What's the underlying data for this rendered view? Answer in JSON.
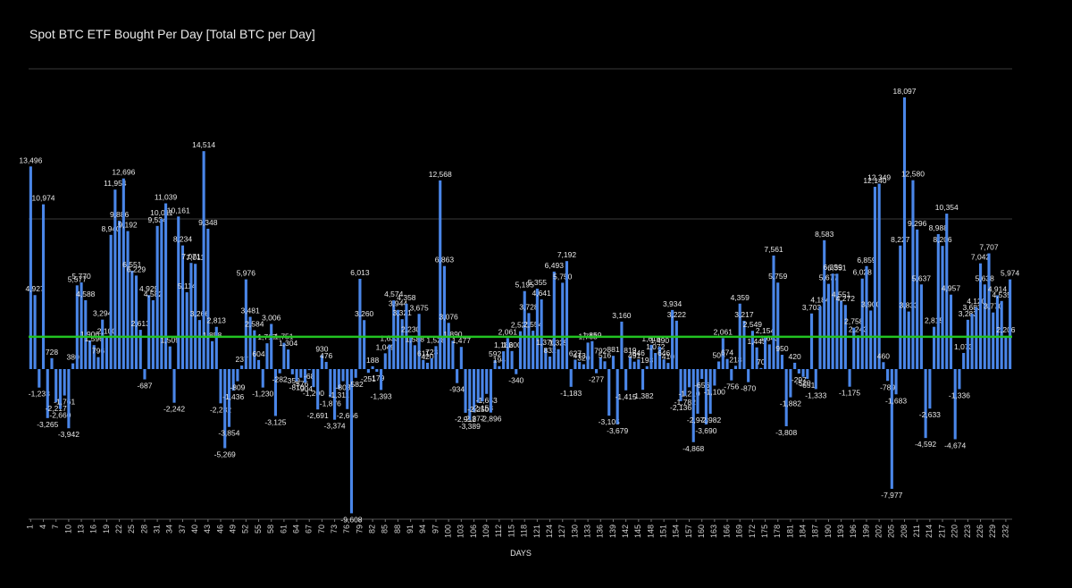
{
  "chart_data": {
    "type": "bar",
    "title": "Spot BTC ETF Bought Per Day [Total BTC per Day]",
    "x_label": "DAYS",
    "color": "#4a86e8",
    "ylim": [
      -10000,
      20000
    ],
    "ygrid": [
      10000,
      20000
    ],
    "average_line": 2150,
    "average_color": "#22c322",
    "x": [
      1,
      2,
      3,
      4,
      5,
      6,
      7,
      8,
      9,
      10,
      11,
      12,
      13,
      14,
      15,
      16,
      17,
      18,
      19,
      20,
      21,
      22,
      23,
      24,
      25,
      26,
      27,
      28,
      29,
      30,
      31,
      32,
      33,
      34,
      35,
      36,
      37,
      38,
      39,
      40,
      41,
      42,
      43,
      44,
      45,
      46,
      47,
      48,
      49,
      50,
      51,
      52,
      53,
      54,
      55,
      56,
      57,
      58,
      59,
      60,
      61,
      62,
      63,
      64,
      65,
      66,
      67,
      68,
      69,
      70,
      71,
      72,
      73,
      74,
      75,
      76,
      77,
      78,
      79,
      80,
      81,
      82,
      83,
      84,
      85,
      86,
      87,
      88,
      89,
      90,
      91,
      92,
      93,
      94,
      95,
      96,
      97,
      98,
      99,
      100,
      101,
      102,
      103,
      104,
      105,
      106,
      107,
      108,
      109,
      110,
      111,
      112,
      113,
      114,
      115,
      116,
      117,
      118,
      119,
      120,
      121,
      122,
      123,
      124,
      125,
      126,
      127,
      128,
      129,
      130,
      131,
      132,
      133,
      134,
      135,
      136,
      137,
      138,
      139,
      140,
      141,
      142,
      143,
      144,
      145,
      146,
      147,
      148,
      149,
      150,
      151,
      152,
      153,
      154,
      155,
      156,
      157,
      158,
      159,
      160,
      161,
      162,
      163,
      164,
      165,
      166,
      167,
      168,
      169,
      170,
      171,
      172,
      173,
      174,
      175,
      176,
      177,
      178,
      179,
      180,
      181,
      182,
      183,
      184,
      185,
      186,
      187,
      188,
      189,
      190,
      191,
      192,
      193,
      194,
      195,
      196,
      197,
      198,
      199,
      200,
      201,
      202,
      203,
      204,
      205,
      206,
      207,
      208,
      209,
      210,
      211,
      212,
      213,
      214,
      215,
      216,
      217,
      218,
      219,
      220,
      221,
      222,
      223,
      224,
      225,
      226,
      227,
      228,
      229,
      230,
      231,
      232,
      233
    ],
    "xticks": [
      1,
      4,
      7,
      10,
      13,
      16,
      19,
      22,
      25,
      28,
      31,
      34,
      37,
      40,
      43,
      46,
      49,
      52,
      55,
      58,
      61,
      64,
      67,
      70,
      73,
      76,
      79,
      82,
      85,
      88,
      91,
      94,
      97,
      100,
      103,
      106,
      109,
      112,
      115,
      118,
      121,
      124,
      127,
      130,
      133,
      136,
      139,
      142,
      145,
      148,
      151,
      154,
      157,
      160,
      163,
      166,
      169,
      172,
      175,
      178,
      181,
      184,
      187,
      190,
      193,
      196,
      199,
      202,
      205,
      208,
      211,
      214,
      217,
      220,
      223,
      226,
      229,
      232
    ],
    "values": [
      13496,
      4927,
      -1233,
      10974,
      -3265,
      728,
      -2217,
      -2660,
      -1761,
      -3942,
      380,
      5577,
      5770,
      4588,
      1906,
      1596,
      796,
      3294,
      2100,
      8940,
      11954,
      9886,
      12696,
      9192,
      6551,
      6229,
      2613,
      -687,
      4929,
      4582,
      9534,
      10011,
      11039,
      1509,
      -2242,
      10161,
      8234,
      5114,
      7071,
      7011,
      3266,
      14514,
      9348,
      1858,
      2813,
      -2282,
      -5269,
      -3854,
      -1436,
      -809,
      237,
      5976,
      3481,
      2584,
      604,
      -1230,
      1717,
      3006,
      -3125,
      -282,
      1751,
      1304,
      -350,
      -810,
      -576,
      -904,
      -68,
      -1200,
      -2691,
      930,
      476,
      -1876,
      -3374,
      -1311,
      -808,
      -2666,
      -9608,
      -582,
      6013,
      3260,
      -251,
      188,
      -179,
      -1393,
      1049,
      1633,
      4574,
      3944,
      3321,
      4358,
      2230,
      1588,
      3675,
      611,
      420,
      723,
      1528,
      12568,
      6863,
      3076,
      1890,
      -934,
      1477,
      -2912,
      -3389,
      -2877,
      -2250,
      -2158,
      -1653,
      -2896,
      592,
      194,
      1186,
      2061,
      1200,
      -340,
      2521,
      5195,
      3728,
      2554,
      5355,
      4641,
      1376,
      832,
      6493,
      1325,
      5750,
      7192,
      -1183,
      627,
      473,
      320,
      1763,
      1859,
      -277,
      792,
      516,
      -3105,
      881,
      -3679,
      3160,
      -1415,
      819,
      491,
      646,
      -1382,
      193,
      1616,
      1072,
      1490,
      646,
      410,
      3934,
      3222,
      -2136,
      -1782,
      -1210,
      -4868,
      -2973,
      -656,
      -3690,
      -2982,
      -1100,
      506,
      2061,
      674,
      -756,
      218,
      4359,
      3217,
      -870,
      2549,
      1443,
      70,
      2154,
      1643,
      7561,
      5759,
      950,
      -3808,
      -1882,
      420,
      -297,
      -520,
      -651,
      3703,
      -1333,
      4184,
      8583,
      5677,
      6359,
      6351,
      4551,
      4272,
      -1175,
      2758,
      2243,
      6028,
      6859,
      3900,
      12140,
      12349,
      460,
      -789,
      -7977,
      -1683,
      8227,
      18097,
      3833,
      12580,
      9296,
      5637,
      -4592,
      -2633,
      2815,
      8988,
      8206,
      10354,
      4957,
      -4674,
      -1336,
      1073,
      3283,
      3683,
      4120,
      7042,
      5638,
      7707,
      3770,
      4914,
      4535,
      2206,
      5974
    ],
    "value_labels": [
      "13,496",
      "4,927",
      "-1,233",
      "10,974",
      "-3,265",
      "728",
      "-2,217",
      "-2,660",
      "-1,761",
      "-3,942",
      "380",
      "5,577",
      "5,770",
      "4,588",
      "1,906",
      "1,596",
      "796",
      "3,294",
      "2,100",
      "8,940",
      "11,954",
      "9,886",
      "12,696",
      "9,192",
      "6,551",
      "6,229",
      "2,613",
      "-687",
      "4,929",
      "4,582",
      "9,534",
      "10,011",
      "11,039",
      "1,509",
      "-2,242",
      "10,161",
      "8,234",
      "5,114",
      "7,071",
      "7,011",
      "3,266",
      "14,514",
      "9,348",
      "1,858",
      "2,813",
      "-2,282",
      "-5,269",
      "-3,854",
      "-1,436",
      "-809",
      "237",
      "5,976",
      "3,481",
      "2,584",
      "604",
      "-1,230",
      "1,717",
      "3,006",
      "-3,125",
      "-282",
      "1,751",
      "1,304",
      "-350",
      "-810",
      "-576",
      "-904",
      "-68",
      "-1,200",
      "-2,691",
      "930",
      "476",
      "-1,876",
      "-3,374",
      "-1,311",
      "-808",
      "-2,666",
      "-9,608",
      "-582",
      "6,013",
      "3,260",
      "-251",
      "188",
      "-179",
      "-1,393",
      "1,049",
      "1,633",
      "4,574",
      "3,944",
      "3,321",
      "4,358",
      "2,230",
      "1,588",
      "3,675",
      "611",
      "420",
      "723",
      "1,528",
      "12,568",
      "6,863",
      "3,076",
      "1,890",
      "-934",
      "1,477",
      "-2,912",
      "-3,389",
      "-2,877",
      "-2,250",
      "-2,158",
      "-1,653",
      "-2,896",
      "592",
      "194",
      "1,186",
      "2,061",
      "1,200",
      "-340",
      "2,521",
      "5,195",
      "3,728",
      "2,554",
      "5,355",
      "4,641",
      "1,376",
      "832",
      "6,493",
      "1,325",
      "5,750",
      "7,192",
      "-1,183",
      "627",
      "473",
      "320",
      "1,763",
      "1,859",
      "-277",
      "792",
      "516",
      "-3,105",
      "881",
      "-3,679",
      "3,160",
      "-1,415",
      "819",
      "491",
      "646",
      "-1,382",
      "193",
      "1,616",
      "1,072",
      "1,490",
      "646",
      "410",
      "3,934",
      "3,222",
      "-2,136",
      "-1,782",
      "-1,210",
      "-4,868",
      "-2,973",
      "-656",
      "-3,690",
      "-2,982",
      "-1,100",
      "506",
      "2,061",
      "674",
      "-756",
      "218",
      "4,359",
      "3,217",
      "-870",
      "2,549",
      "1,443",
      "70",
      "2,154",
      "1,643",
      "7,561",
      "5,759",
      "950",
      "-3,808",
      "-1,882",
      "420",
      "-297",
      "-520",
      "-651",
      "3,703",
      "-1,333",
      "4,184",
      "8,583",
      "5,677",
      "6,359",
      "6,351",
      "4,551",
      "4,272",
      "-1,175",
      "2,758",
      "2,243",
      "6,028",
      "6,859",
      "3,900",
      "12,140",
      "12,349",
      "460",
      "-789",
      "-7,977",
      "-1,683",
      "8,227",
      "18,097",
      "3,833",
      "12,580",
      "9,296",
      "5,637",
      "-4,592",
      "-2,633",
      "2,815",
      "8,988",
      "8,206",
      "10,354",
      "4,957",
      "-4,674",
      "-1,336",
      "1,073",
      "3,283",
      "3,683",
      "4,120",
      "7,042",
      "5,638",
      "7,707",
      "3,770",
      "4,914",
      "4,535",
      "2,206",
      "5,974"
    ]
  }
}
